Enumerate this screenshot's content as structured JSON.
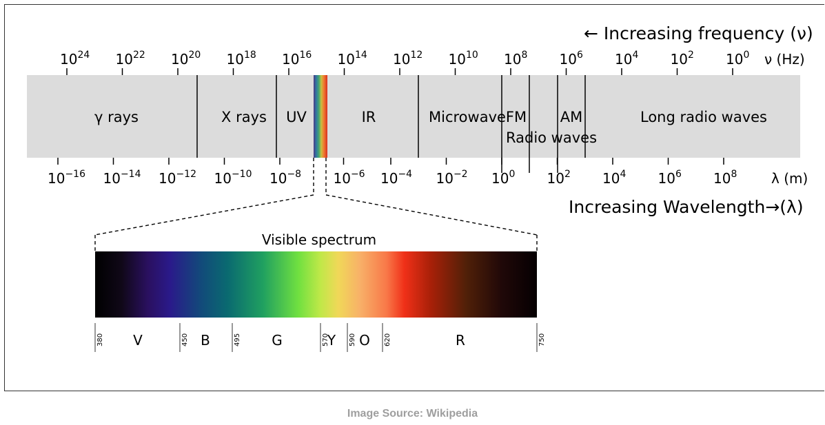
{
  "header": {
    "frequency_arrow": "← Increasing frequency (ν)",
    "wavelength_arrow": "Increasing Wavelength→(λ)"
  },
  "frequency_axis": {
    "unit_label": "ν (Hz)",
    "ticks": [
      {
        "base": "10",
        "exp": "24"
      },
      {
        "base": "10",
        "exp": "22"
      },
      {
        "base": "10",
        "exp": "20"
      },
      {
        "base": "10",
        "exp": "18"
      },
      {
        "base": "10",
        "exp": "16"
      },
      {
        "base": "10",
        "exp": "14"
      },
      {
        "base": "10",
        "exp": "12"
      },
      {
        "base": "10",
        "exp": "10"
      },
      {
        "base": "10",
        "exp": "8"
      },
      {
        "base": "10",
        "exp": "6"
      },
      {
        "base": "10",
        "exp": "4"
      },
      {
        "base": "10",
        "exp": "2"
      },
      {
        "base": "10",
        "exp": "0"
      }
    ]
  },
  "wavelength_axis": {
    "unit_label": "λ (m)",
    "ticks": [
      {
        "base": "10",
        "exp": "−16"
      },
      {
        "base": "10",
        "exp": "−14"
      },
      {
        "base": "10",
        "exp": "−12"
      },
      {
        "base": "10",
        "exp": "−10"
      },
      {
        "base": "10",
        "exp": "−8"
      },
      {
        "base": "10",
        "exp": "−6"
      },
      {
        "base": "10",
        "exp": "−4"
      },
      {
        "base": "10",
        "exp": "−2"
      },
      {
        "base": "10",
        "exp": "0"
      },
      {
        "base": "10",
        "exp": "2"
      },
      {
        "base": "10",
        "exp": "4"
      },
      {
        "base": "10",
        "exp": "6"
      },
      {
        "base": "10",
        "exp": "8"
      }
    ]
  },
  "bands": {
    "gamma": "γ rays",
    "xray": "X rays",
    "uv": "UV",
    "ir": "IR",
    "microwave": "Microwave",
    "fm": "FM",
    "am": "AM",
    "radio": "Radio waves",
    "long_radio": "Long radio waves"
  },
  "visible": {
    "title": "Visible spectrum",
    "colors": [
      {
        "label": "V"
      },
      {
        "label": "B"
      },
      {
        "label": "G"
      },
      {
        "label": "Y"
      },
      {
        "label": "O"
      },
      {
        "label": "R"
      }
    ],
    "boundaries_nm": [
      "380",
      "450",
      "495",
      "570",
      "590",
      "620",
      "750"
    ]
  },
  "caption": "Image Source: Wikipedia"
}
